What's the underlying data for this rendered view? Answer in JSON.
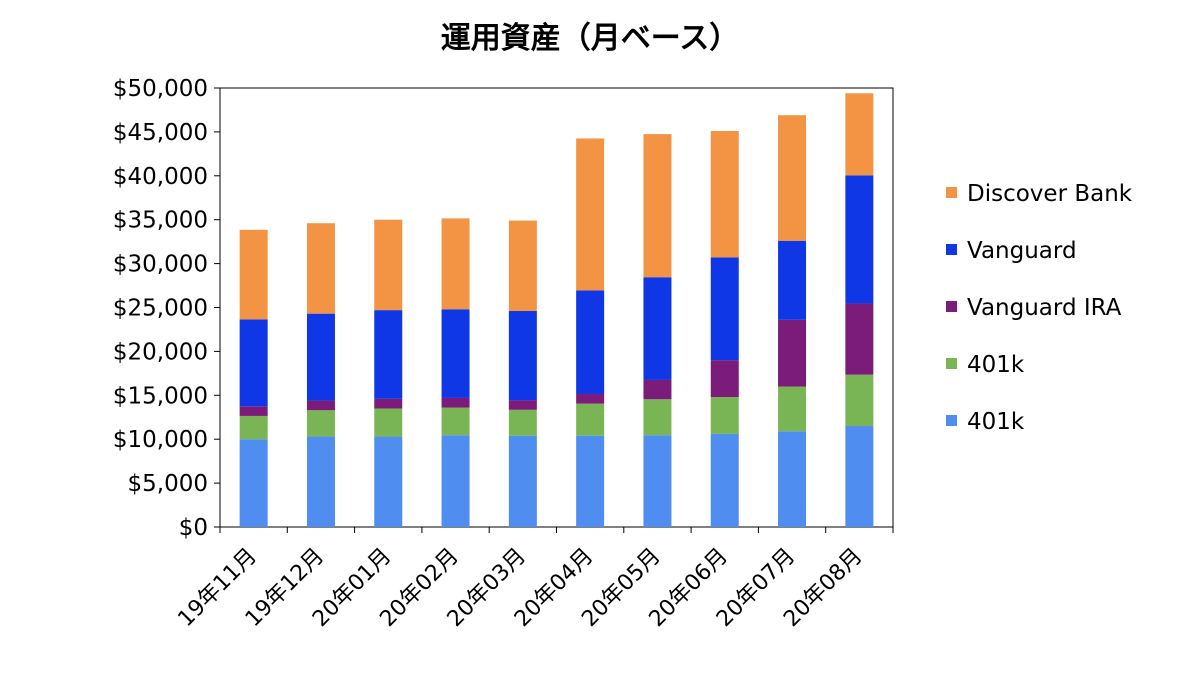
{
  "chart_data": {
    "type": "bar",
    "stacked": true,
    "title": "運用資産（月ベース）",
    "categories": [
      "19年11月",
      "19年12月",
      "20年01月",
      "20年02月",
      "20年03月",
      "20年04月",
      "20年05月",
      "20年06月",
      "20年07月",
      "20年08月"
    ],
    "series": [
      {
        "name": "401k",
        "color": "#4f8df0",
        "values": [
          10000,
          10300,
          10300,
          10450,
          10400,
          10400,
          10450,
          10600,
          10900,
          11500
        ]
      },
      {
        "name": "401k",
        "color": "#7ab555",
        "values": [
          2650,
          3000,
          3200,
          3150,
          2950,
          3650,
          4100,
          4200,
          5100,
          5850
        ]
      },
      {
        "name": "Vanguard IRA",
        "color": "#7b1c7a",
        "values": [
          1100,
          1100,
          1100,
          1100,
          1100,
          1100,
          2200,
          4200,
          7600,
          8100
        ]
      },
      {
        "name": "Vanguard",
        "color": "#0f37e6",
        "values": [
          9900,
          9900,
          10100,
          10100,
          10150,
          11800,
          11700,
          11700,
          9000,
          14600
        ]
      },
      {
        "name": "Discover Bank",
        "color": "#f39444",
        "values": [
          10200,
          10300,
          10300,
          10350,
          10300,
          17300,
          16300,
          14400,
          14300,
          9350
        ]
      }
    ],
    "legend_order": [
      4,
      3,
      2,
      1,
      0
    ],
    "ylim": [
      0,
      50000
    ],
    "yticks": [
      0,
      5000,
      10000,
      15000,
      20000,
      25000,
      30000,
      35000,
      40000,
      45000,
      50000
    ],
    "ytick_labels": [
      "$0",
      "$5,000",
      "$10,000",
      "$15,000",
      "$20,000",
      "$25,000",
      "$30,000",
      "$35,000",
      "$40,000",
      "$45,000",
      "$50,000"
    ],
    "xlabel": "",
    "ylabel": "",
    "grid": false,
    "legend_position": "right"
  }
}
